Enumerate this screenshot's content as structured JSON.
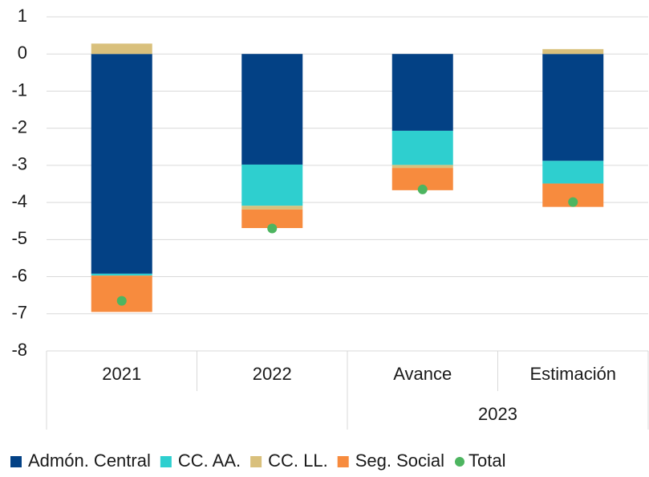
{
  "chart_data": {
    "type": "bar",
    "stacked": true,
    "categories": [
      "2021",
      "2022",
      "Avance",
      "Estimación"
    ],
    "category_groups": [
      null,
      null,
      "2023",
      "2023"
    ],
    "series": [
      {
        "name": "Admón. Central",
        "color": "#034185",
        "type": "bar",
        "values": [
          -5.92,
          -2.98,
          -2.07,
          -2.88
        ]
      },
      {
        "name": "CC. AA.",
        "color": "#2ecfcf",
        "type": "bar",
        "values": [
          -0.05,
          -1.11,
          -0.92,
          -0.61
        ]
      },
      {
        "name": "CC. LL.",
        "color": "#d9c07c",
        "type": "bar",
        "values": [
          0.28,
          -0.1,
          -0.08,
          0.13
        ]
      },
      {
        "name": "Seg. Social",
        "color": "#f78b3e",
        "type": "bar",
        "values": [
          -0.98,
          -0.5,
          -0.6,
          -0.63
        ]
      },
      {
        "name": "Total",
        "color": "#4db560",
        "type": "scatter",
        "values": [
          -6.65,
          -4.7,
          -3.65,
          -3.99
        ]
      }
    ],
    "ylim": [
      -8,
      1
    ],
    "yticks": [
      -8,
      -7,
      -6,
      -5,
      -4,
      -3,
      -2,
      -1,
      0,
      1
    ],
    "grid": true,
    "legend": "bottom"
  }
}
